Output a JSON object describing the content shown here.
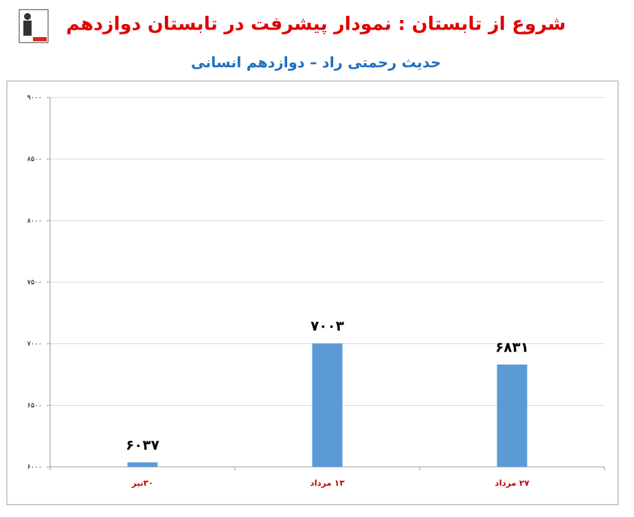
{
  "chart_data": {
    "type": "bar",
    "title": "شروع از تابستان : نمودار پیشرفت در تابستان دوازدهم",
    "subtitle": "حدیث رحمتی راد – دوازدهم انسانی",
    "categories": [
      "۳۰تیر",
      "۱۳ مرداد",
      "۲۷ مرداد"
    ],
    "values": [
      6037,
      7003,
      6831
    ],
    "value_labels": [
      "۶۰۳۷",
      "۷۰۰۳",
      "۶۸۳۱"
    ],
    "color": "#5b9bd5",
    "ylim": [
      6000,
      9000
    ],
    "yticks": [
      {
        "value": 6000,
        "label": "۶۰۰۰"
      },
      {
        "value": 6500,
        "label": "۶۵۰۰"
      },
      {
        "value": 7000,
        "label": "۷۰۰۰"
      },
      {
        "value": 7500,
        "label": "۷۵۰۰"
      },
      {
        "value": 8000,
        "label": "۸۰۰۰"
      },
      {
        "value": 8500,
        "label": "۸۵۰۰"
      },
      {
        "value": 9000,
        "label": "۹۰۰۰"
      }
    ],
    "grid": true
  }
}
